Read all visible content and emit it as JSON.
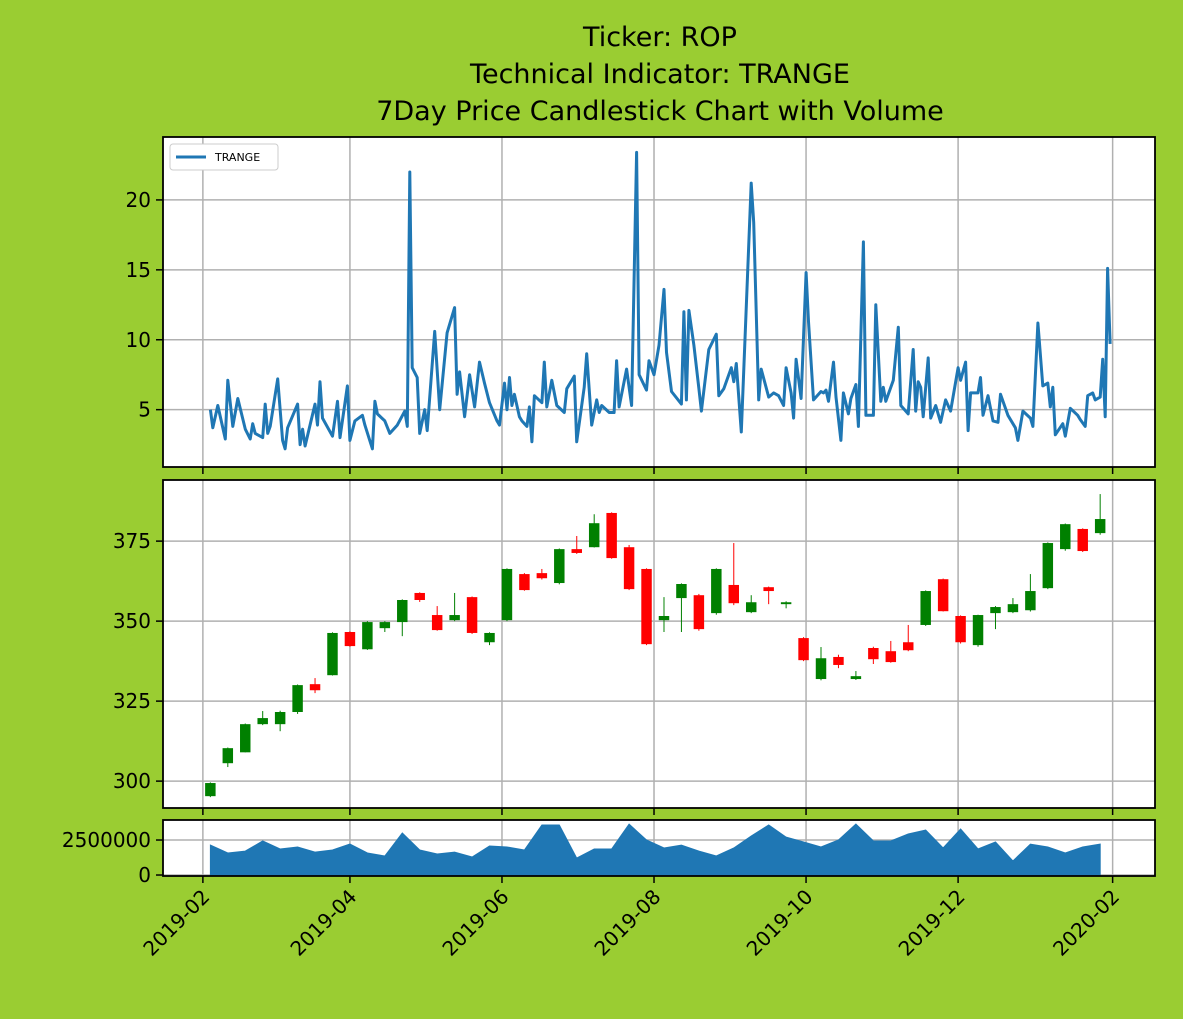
{
  "chart_data": [
    {
      "type": "line",
      "title": [
        "Ticker: ROP",
        "Technical Indicator: TRANGE",
        "7Day Price Candlestick Chart with Volume"
      ],
      "x": [
        "2019-02-04",
        "2019-02-05",
        "2019-02-07",
        "2019-02-10",
        "2019-02-11",
        "2019-02-13",
        "2019-02-15",
        "2019-02-18",
        "2019-02-20",
        "2019-02-21",
        "2019-02-22",
        "2019-02-25",
        "2019-02-26",
        "2019-02-27",
        "2019-02-28",
        "2019-03-03",
        "2019-03-05",
        "2019-03-06",
        "2019-03-07",
        "2019-03-11",
        "2019-03-12",
        "2019-03-13",
        "2019-03-14",
        "2019-03-18",
        "2019-03-19",
        "2019-03-20",
        "2019-03-21",
        "2019-03-25",
        "2019-03-27",
        "2019-03-28",
        "2019-03-31",
        "2019-04-01",
        "2019-04-03",
        "2019-04-06",
        "2019-04-07",
        "2019-04-10",
        "2019-04-11",
        "2019-04-12",
        "2019-04-15",
        "2019-04-17",
        "2019-04-20",
        "2019-04-23",
        "2019-04-24",
        "2019-04-25",
        "2019-04-26",
        "2019-04-28",
        "2019-04-29",
        "2019-05-01",
        "2019-05-02",
        "2019-05-05",
        "2019-05-07",
        "2019-05-10",
        "2019-05-13",
        "2019-05-14",
        "2019-05-15",
        "2019-05-17",
        "2019-05-19",
        "2019-05-21",
        "2019-05-23",
        "2019-05-25",
        "2019-05-27",
        "2019-05-30",
        "2019-05-31",
        "2019-06-02",
        "2019-06-03",
        "2019-06-04",
        "2019-06-05",
        "2019-06-06",
        "2019-06-08",
        "2019-06-09",
        "2019-06-11",
        "2019-06-12",
        "2019-06-13",
        "2019-06-14",
        "2019-06-17",
        "2019-06-18",
        "2019-06-19",
        "2019-06-21",
        "2019-06-23",
        "2019-06-26",
        "2019-06-27",
        "2019-06-30",
        "2019-07-01",
        "2019-07-04",
        "2019-07-05",
        "2019-07-07",
        "2019-07-09",
        "2019-07-10",
        "2019-07-11",
        "2019-07-14",
        "2019-07-16",
        "2019-07-17",
        "2019-07-18",
        "2019-07-21",
        "2019-07-23",
        "2019-07-25",
        "2019-07-26",
        "2019-07-29",
        "2019-07-30",
        "2019-08-01",
        "2019-08-03",
        "2019-08-05",
        "2019-08-06",
        "2019-08-08",
        "2019-08-12",
        "2019-08-13",
        "2019-08-14",
        "2019-08-15",
        "2019-08-17",
        "2019-08-19",
        "2019-08-20",
        "2019-08-23",
        "2019-08-26",
        "2019-08-27",
        "2019-08-29",
        "2019-09-01",
        "2019-09-02",
        "2019-09-03",
        "2019-09-05",
        "2019-09-09",
        "2019-09-10",
        "2019-09-12",
        "2019-09-13",
        "2019-09-16",
        "2019-09-18",
        "2019-09-20",
        "2019-09-22",
        "2019-09-23",
        "2019-09-25",
        "2019-09-26",
        "2019-09-27",
        "2019-09-29",
        "2019-10-01",
        "2019-10-02",
        "2019-10-04",
        "2019-10-07",
        "2019-10-08",
        "2019-10-09",
        "2019-10-10",
        "2019-10-12",
        "2019-10-13",
        "2019-10-15",
        "2019-10-16",
        "2019-10-18",
        "2019-10-19",
        "2019-10-21",
        "2019-10-22",
        "2019-10-24",
        "2019-10-25",
        "2019-10-28",
        "2019-10-29",
        "2019-10-31",
        "2019-11-01",
        "2019-11-02",
        "2019-11-05",
        "2019-11-07",
        "2019-11-08",
        "2019-11-11",
        "2019-11-13",
        "2019-11-14",
        "2019-11-15",
        "2019-11-16",
        "2019-11-17",
        "2019-11-19",
        "2019-11-20",
        "2019-11-22",
        "2019-11-24",
        "2019-11-26",
        "2019-11-28",
        "2019-12-01",
        "2019-12-02",
        "2019-12-04",
        "2019-12-05",
        "2019-12-06",
        "2019-12-09",
        "2019-12-10",
        "2019-12-11",
        "2019-12-13",
        "2019-12-15",
        "2019-12-17",
        "2019-12-18",
        "2019-12-21",
        "2019-12-24",
        "2019-12-25",
        "2019-12-27",
        "2019-12-30",
        "2019-12-31",
        "2020-01-02",
        "2020-01-04",
        "2020-01-06",
        "2020-01-07",
        "2020-01-08",
        "2020-01-09",
        "2020-01-12",
        "2020-01-13",
        "2020-01-15",
        "2020-01-18",
        "2020-01-19",
        "2020-01-21",
        "2020-01-22",
        "2020-01-24",
        "2020-01-25",
        "2020-01-27",
        "2020-01-28",
        "2020-01-29",
        "2020-01-30",
        "2020-01-31"
      ],
      "series": [
        {
          "name": "TRANGE",
          "color": "#1f77b4",
          "values": [
            5.0,
            3.7,
            5.3,
            2.9,
            7.1,
            3.8,
            5.8,
            3.6,
            2.9,
            4.0,
            3.3,
            3.0,
            5.4,
            3.3,
            3.8,
            7.2,
            2.8,
            2.2,
            3.7,
            5.4,
            2.5,
            3.6,
            2.4,
            5.4,
            3.9,
            7.0,
            4.4,
            3.1,
            5.6,
            3.0,
            6.7,
            2.8,
            4.2,
            4.6,
            3.9,
            2.2,
            5.6,
            4.7,
            4.2,
            3.3,
            3.9,
            4.9,
            3.8,
            22.0,
            8.0,
            7.3,
            3.3,
            5.0,
            3.5,
            10.6,
            5.0,
            10.5,
            12.3,
            6.1,
            7.7,
            4.5,
            7.5,
            5.2,
            8.4,
            6.9,
            5.5,
            4.2,
            3.9,
            6.9,
            5.0,
            7.3,
            5.3,
            6.1,
            4.5,
            4.2,
            3.8,
            5.2,
            2.7,
            6.0,
            5.5,
            8.4,
            5.2,
            7.1,
            5.3,
            4.8,
            6.5,
            7.4,
            2.7,
            6.6,
            9.0,
            3.9,
            5.7,
            4.8,
            5.3,
            4.8,
            4.8,
            8.5,
            5.2,
            7.9,
            5.3,
            23.4,
            7.5,
            6.4,
            8.5,
            7.5,
            9.6,
            13.6,
            9.1,
            6.3,
            5.4,
            12.0,
            5.7,
            12.1,
            9.6,
            6.5,
            4.9,
            9.3,
            10.4,
            6.0,
            6.5,
            8.0,
            7.0,
            8.3,
            3.4,
            21.2,
            18.4,
            5.7,
            7.9,
            5.9,
            6.2,
            6.0,
            5.3,
            8.0,
            6.2,
            4.4,
            8.6,
            5.8,
            14.8,
            11.3,
            5.7,
            6.3,
            6.2,
            6.4,
            5.6,
            8.4,
            5.9,
            2.8,
            6.2,
            4.7,
            5.8,
            6.8,
            3.8,
            17.0,
            4.6,
            4.6,
            12.5,
            5.6,
            6.6,
            5.6,
            7.1,
            10.9,
            5.3,
            4.7,
            9.3,
            4.9,
            7.0,
            6.6,
            4.5,
            8.7,
            4.4,
            5.3,
            4.1,
            5.7,
            4.9,
            8.0,
            7.1,
            8.4,
            3.5,
            6.2,
            6.2,
            7.3,
            4.6,
            6.0,
            4.2,
            4.1,
            6.1,
            4.6,
            3.7,
            2.8,
            4.9,
            4.4,
            3.8,
            11.2,
            6.7,
            6.9,
            5.2,
            6.6,
            3.2,
            4.0,
            3.1,
            5.1,
            4.6,
            4.3,
            3.8,
            6.0,
            6.2,
            5.7,
            5.9,
            8.6,
            4.5,
            15.1,
            9.7
          ]
        }
      ],
      "ylim": [
        0.9,
        24.5
      ],
      "yticks": [
        5,
        10,
        15,
        20
      ],
      "grid": true,
      "legend": "upper left"
    },
    {
      "type": "candlestick",
      "x": [
        "2019-02-04",
        "2019-02-11",
        "2019-02-18",
        "2019-02-25",
        "2019-03-04",
        "2019-03-11",
        "2019-03-18",
        "2019-03-25",
        "2019-04-01",
        "2019-04-08",
        "2019-04-15",
        "2019-04-22",
        "2019-04-29",
        "2019-05-06",
        "2019-05-13",
        "2019-05-20",
        "2019-05-27",
        "2019-06-03",
        "2019-06-10",
        "2019-06-17",
        "2019-06-24",
        "2019-07-01",
        "2019-07-08",
        "2019-07-15",
        "2019-07-22",
        "2019-07-29",
        "2019-08-05",
        "2019-08-12",
        "2019-08-19",
        "2019-08-26",
        "2019-09-02",
        "2019-09-09",
        "2019-09-16",
        "2019-09-23",
        "2019-09-30",
        "2019-10-07",
        "2019-10-14",
        "2019-10-21",
        "2019-10-28",
        "2019-11-04",
        "2019-11-11",
        "2019-11-18",
        "2019-11-25",
        "2019-12-02",
        "2019-12-09",
        "2019-12-16",
        "2019-12-23",
        "2019-12-30",
        "2020-01-06",
        "2020-01-13",
        "2020-01-20",
        "2020-01-27"
      ],
      "open": [
        295.3,
        305.6,
        309,
        317.8,
        317.8,
        321.6,
        330.3,
        333.1,
        346.6,
        341.2,
        347.8,
        349.7,
        358.8,
        351.9,
        350.3,
        357.5,
        343.4,
        350.3,
        364.7,
        365,
        361.9,
        372.5,
        373.1,
        383.8,
        373.1,
        366.3,
        350.3,
        357.2,
        358.1,
        352.5,
        361.3,
        352.8,
        360.6,
        355.3,
        344.7,
        331.9,
        338.8,
        331.9,
        341.6,
        340.6,
        343.4,
        348.8,
        363.1,
        351.6,
        342.5,
        352.5,
        352.8,
        353.4,
        360.3,
        372.5,
        378.8,
        377.5
      ],
      "high": [
        299.6,
        310.5,
        318,
        321.9,
        322,
        330.2,
        332.2,
        346.5,
        346.8,
        350,
        350,
        356.8,
        359,
        354.7,
        358.8,
        357.7,
        346.5,
        366.5,
        365,
        366.3,
        372.7,
        376.6,
        383.4,
        384,
        373.8,
        366.5,
        357.5,
        361.8,
        358.5,
        366.5,
        374.4,
        358.1,
        360.8,
        356.2,
        345,
        341.9,
        339.5,
        334.4,
        342,
        343.8,
        348.8,
        359.6,
        363.3,
        351.8,
        352,
        354.7,
        357.2,
        364.7,
        374.6,
        380.5,
        379,
        389.7
      ],
      "low": [
        295,
        304.4,
        309,
        317.5,
        315.6,
        321,
        327.5,
        333,
        342,
        341,
        346.6,
        345.3,
        356,
        347,
        350,
        346,
        342.5,
        350,
        359.5,
        363,
        361.5,
        371,
        373,
        369.5,
        359.7,
        342.5,
        346.6,
        346.6,
        347,
        352,
        355,
        352.5,
        355.3,
        354,
        337.5,
        331.5,
        335.3,
        331.6,
        336.6,
        337,
        340.6,
        348.5,
        353,
        343,
        342,
        347.5,
        352.5,
        353,
        360,
        372,
        371.6,
        377
      ],
      "close": [
        299.4,
        310.3,
        317.8,
        319.7,
        321.6,
        330,
        328.4,
        346.3,
        342.2,
        349.7,
        349.7,
        356.6,
        356.6,
        347.2,
        351.9,
        346.3,
        346.3,
        366.3,
        359.7,
        363.4,
        372.5,
        371.3,
        380.6,
        369.7,
        360,
        342.8,
        351.6,
        361.6,
        347.5,
        366.3,
        355.6,
        355.9,
        359.4,
        355.9,
        337.8,
        338.4,
        336.3,
        332.8,
        338.1,
        337.2,
        340.9,
        359.4,
        353.1,
        343.4,
        351.9,
        354.4,
        355.3,
        359.4,
        374.4,
        380.3,
        371.9,
        381.9
      ],
      "up_color": "green",
      "down_color": "red",
      "ylim": [
        291.6,
        394.1
      ],
      "yticks": [
        300,
        325,
        350,
        375
      ],
      "grid": true
    },
    {
      "type": "area",
      "x": [
        "2019-02-04",
        "2019-02-11",
        "2019-02-18",
        "2019-02-25",
        "2019-03-04",
        "2019-03-11",
        "2019-03-18",
        "2019-03-25",
        "2019-04-01",
        "2019-04-08",
        "2019-04-15",
        "2019-04-22",
        "2019-04-29",
        "2019-05-06",
        "2019-05-13",
        "2019-05-20",
        "2019-05-27",
        "2019-06-03",
        "2019-06-10",
        "2019-06-17",
        "2019-06-24",
        "2019-07-01",
        "2019-07-08",
        "2019-07-15",
        "2019-07-22",
        "2019-07-29",
        "2019-08-05",
        "2019-08-12",
        "2019-08-19",
        "2019-08-26",
        "2019-09-02",
        "2019-09-09",
        "2019-09-16",
        "2019-09-23",
        "2019-09-30",
        "2019-10-07",
        "2019-10-14",
        "2019-10-21",
        "2019-10-28",
        "2019-11-04",
        "2019-11-11",
        "2019-11-18",
        "2019-11-25",
        "2019-12-02",
        "2019-12-09",
        "2019-12-16",
        "2019-12-23",
        "2019-12-30",
        "2020-01-06",
        "2020-01-13",
        "2020-01-20",
        "2020-01-27"
      ],
      "values": [
        2140000,
        1570000,
        1710000,
        2430000,
        1860000,
        2000000,
        1640000,
        1790000,
        2210000,
        1570000,
        1360000,
        3000000,
        1790000,
        1500000,
        1640000,
        1290000,
        2070000,
        2000000,
        1790000,
        3570000,
        3570000,
        1210000,
        1860000,
        1860000,
        3640000,
        2500000,
        1930000,
        2140000,
        1710000,
        1360000,
        1930000,
        2790000,
        3570000,
        2710000,
        2360000,
        2000000,
        2500000,
        3640000,
        2430000,
        2430000,
        2930000,
        3210000,
        1930000,
        3290000,
        1860000,
        2360000,
        1000000,
        2210000,
        2000000,
        1570000,
        2000000,
        2210000
      ],
      "color": "#1f77b4",
      "ylim": [
        -70000,
        3930000
      ],
      "yticks": [
        0,
        2500000
      ],
      "grid": true,
      "xlim": [
        "2019-01-16",
        "2020-02-18"
      ],
      "xticks": [
        "2019-02",
        "2019-04",
        "2019-06",
        "2019-08",
        "2019-10",
        "2019-12",
        "2020-02"
      ]
    }
  ]
}
